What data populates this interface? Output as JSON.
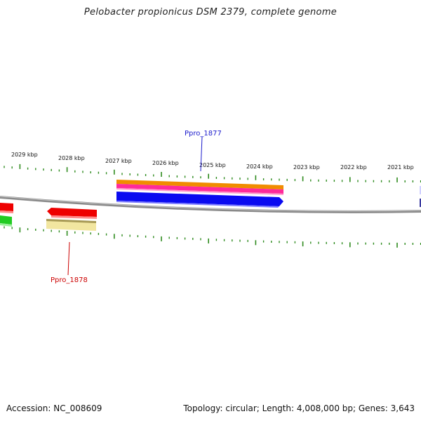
{
  "title": "Pelobacter propionicus DSM 2379, complete genome",
  "ruler": {
    "tick_labels": [
      "2029 kbp",
      "2028 kbp",
      "2027 kbp",
      "2026 kbp",
      "2025 kbp",
      "2024 kbp",
      "2023 kbp",
      "2022 kbp",
      "2021 kbp"
    ],
    "tick_color": "#2e8b1e"
  },
  "genes": {
    "upper_label": "Ppro_1877",
    "upper_label_color": "#1a1acc",
    "lower_label": "Ppro_1878",
    "lower_label_color": "#cc0000"
  },
  "colors": {
    "backbone": "#8a8a8a",
    "blue": "#0a0af0",
    "red": "#ee0000",
    "orange": "#f08c00",
    "pink": "#ff2a9a",
    "khaki": "#f2e6a0",
    "green": "#22cc22"
  },
  "footer": {
    "accession": "Accession: NC_008609",
    "summary": "Topology: circular; Length: 4,008,000 bp; Genes: 3,643"
  }
}
